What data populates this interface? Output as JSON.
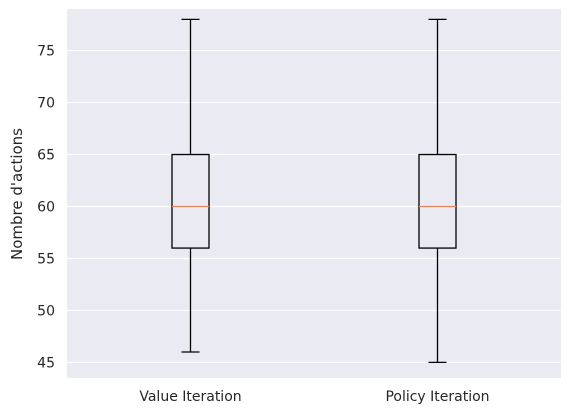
{
  "chart_data": {
    "type": "boxplot",
    "title": "",
    "xlabel": "",
    "ylabel": "Nombre d'actions",
    "ylim": [
      43.5,
      79
    ],
    "y_ticks": [
      45,
      50,
      55,
      60,
      65,
      70,
      75
    ],
    "grid": true,
    "categories": [
      "Value Iteration",
      "Policy Iteration"
    ],
    "boxes": [
      {
        "min": 46,
        "q1": 56,
        "median": 60,
        "q3": 65,
        "max": 78
      },
      {
        "min": 45,
        "q1": 56,
        "median": 60,
        "q3": 65,
        "max": 78
      }
    ],
    "colors": {
      "plot_background": "#eaeaf2",
      "grid": "#ffffff",
      "box": "#000000",
      "median": "#e8845c",
      "text": "#262626"
    }
  }
}
